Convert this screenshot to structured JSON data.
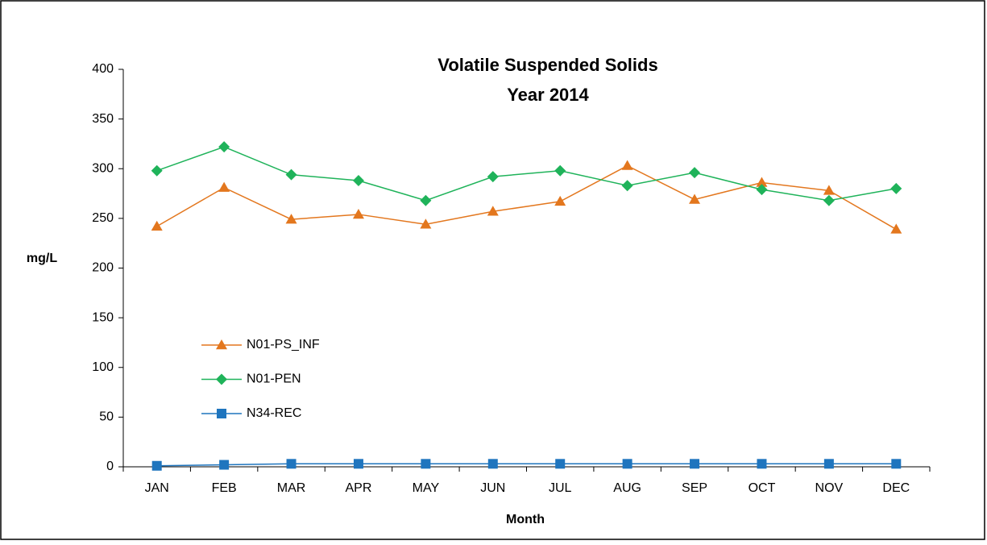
{
  "chart_data": {
    "type": "line",
    "title": "Volatile Suspended Solids",
    "subtitle": "Year 2014",
    "y_label": "mg/L",
    "x_label": "Month",
    "categories": [
      "JAN",
      "FEB",
      "MAR",
      "APR",
      "MAY",
      "JUN",
      "JUL",
      "AUG",
      "SEP",
      "OCT",
      "NOV",
      "DEC"
    ],
    "series": [
      {
        "name": "N01-PS_INF",
        "color": "#e3771e",
        "marker": "triangle",
        "values": [
          242,
          281,
          249,
          254,
          244,
          257,
          267,
          303,
          269,
          286,
          278,
          239
        ]
      },
      {
        "name": "N01-PEN",
        "color": "#1fb35a",
        "marker": "diamond",
        "values": [
          298,
          322,
          294,
          288,
          268,
          292,
          298,
          283,
          296,
          279,
          268,
          280
        ]
      },
      {
        "name": "N34-REC",
        "color": "#1f75be",
        "marker": "square",
        "values": [
          1,
          2,
          3,
          3,
          3,
          3,
          3,
          3,
          3,
          3,
          3,
          3
        ]
      }
    ],
    "ylim": [
      0,
      400
    ],
    "yticks": [
      0,
      50,
      100,
      150,
      200,
      250,
      300,
      350,
      400
    ],
    "grid": false,
    "legend": "left"
  }
}
